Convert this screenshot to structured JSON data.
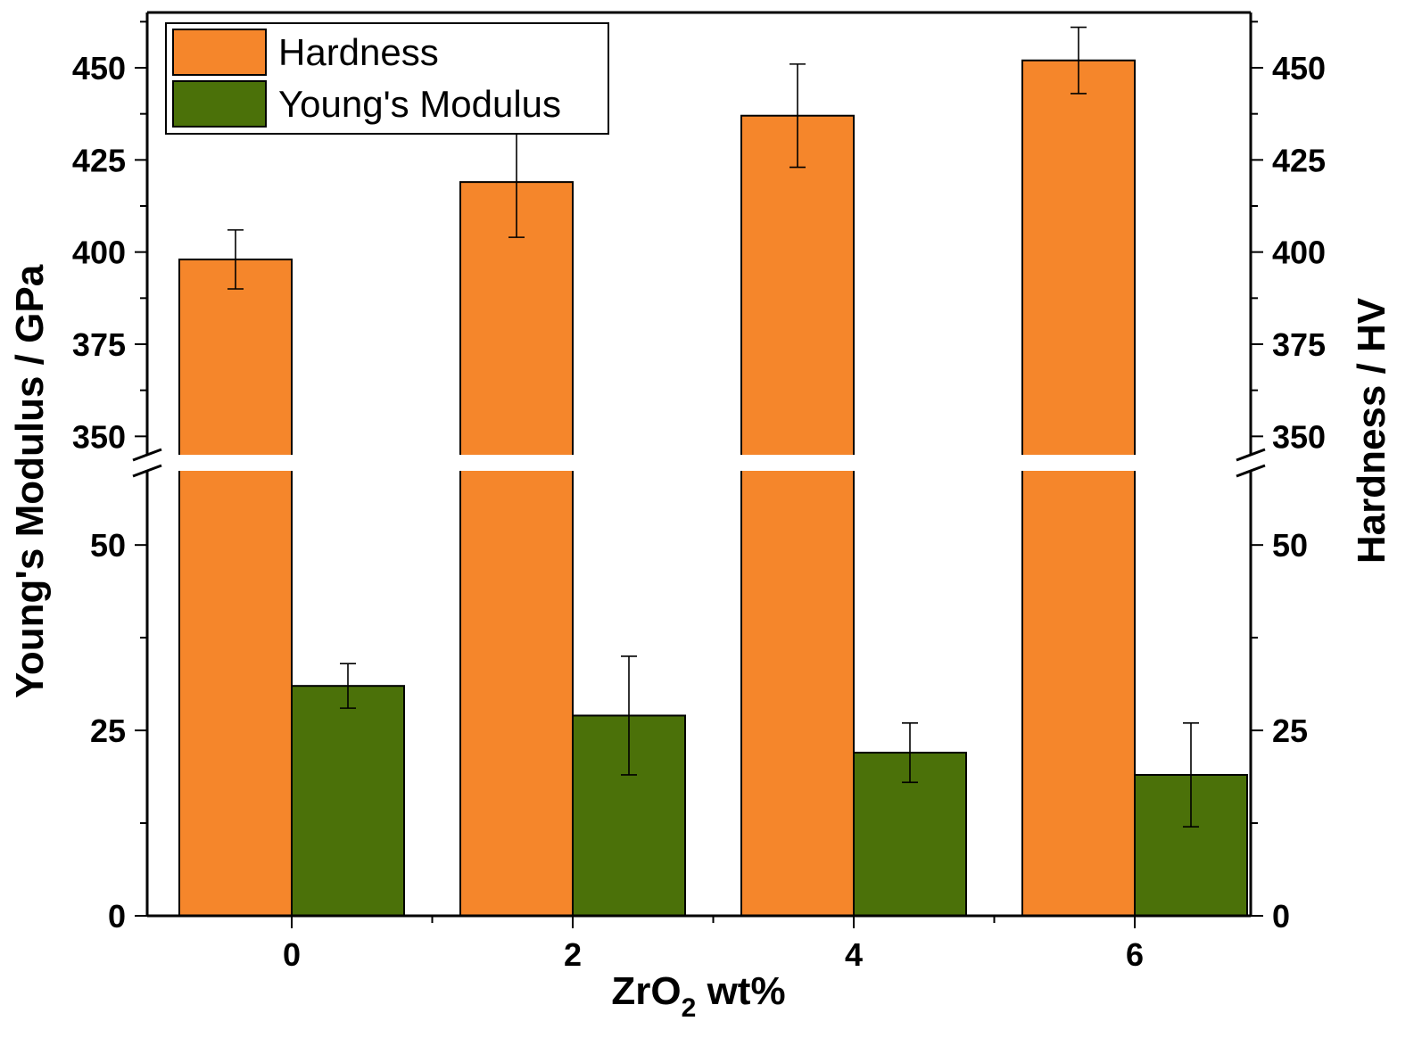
{
  "chart_data": {
    "type": "bar",
    "categories": [
      "0",
      "2",
      "4",
      "6"
    ],
    "xlabel": {
      "main": "ZrO",
      "sub": "2",
      "rest": " wt%"
    },
    "ylabel_left": "Young's Modulus / GPa",
    "ylabel_right": "Hardness / HV",
    "axis_break": {
      "lower_range": [
        0,
        60
      ],
      "upper_range": [
        345,
        465
      ]
    },
    "lower_ticks": [
      "0",
      "25",
      "50"
    ],
    "upper_ticks": [
      "350",
      "375",
      "400",
      "425",
      "450"
    ],
    "series": [
      {
        "name": "Hardness",
        "color": "#F5862B",
        "values": [
          398,
          419,
          437,
          452
        ],
        "error": [
          8,
          15,
          14,
          9
        ]
      },
      {
        "name": "Young's Modulus",
        "color": "#4B7109",
        "values": [
          31,
          27,
          22,
          19
        ],
        "error": [
          3,
          8,
          4,
          7
        ]
      }
    ],
    "legend_position": "top-left",
    "grid": false
  }
}
